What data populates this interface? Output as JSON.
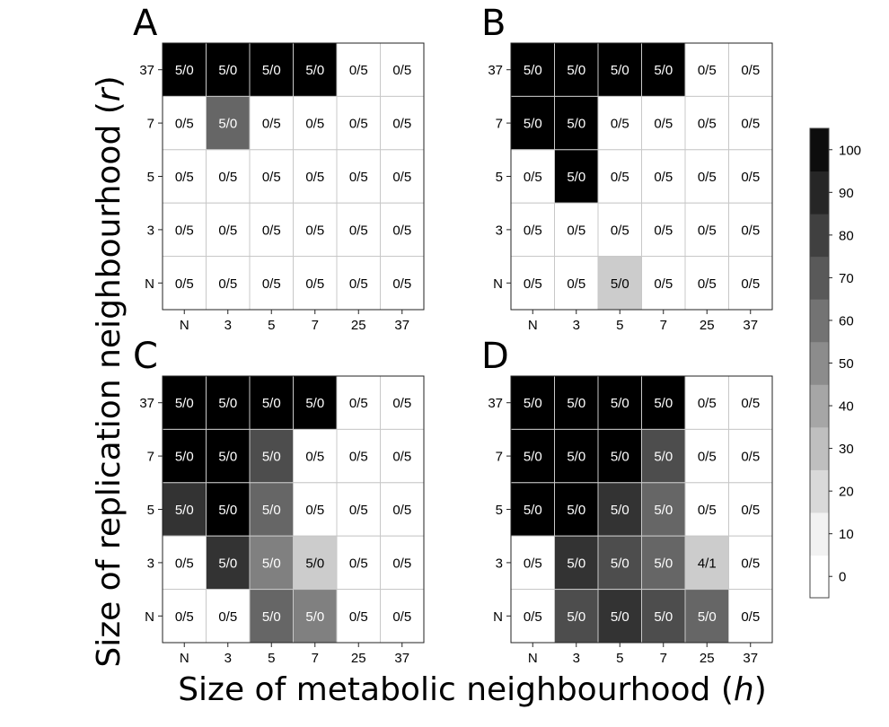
{
  "axis_titles": {
    "x_prefix": "Size of metabolic neighbourhood (",
    "x_var": "h",
    "suffix": ")",
    "y_prefix": "Size of replication neighbourhood (",
    "y_var": "r"
  },
  "chart_data": {
    "type": "heatmap",
    "x_categories": [
      "N",
      "3",
      "5",
      "7",
      "25",
      "37"
    ],
    "y_categories": [
      "37",
      "7",
      "5",
      "3",
      "N"
    ],
    "colorbar": {
      "ticks": [
        100,
        90,
        80,
        70,
        60,
        50,
        40,
        30,
        20,
        10,
        0
      ],
      "range": [
        -5,
        105
      ],
      "step": 10
    },
    "panels": [
      {
        "label": "A",
        "values": [
          [
            100,
            100,
            100,
            100,
            0,
            0
          ],
          [
            0,
            60,
            0,
            0,
            0,
            0
          ],
          [
            0,
            0,
            0,
            0,
            0,
            0
          ],
          [
            0,
            0,
            0,
            0,
            0,
            0
          ],
          [
            0,
            0,
            0,
            0,
            0,
            0
          ]
        ],
        "labels": [
          [
            "5/0",
            "5/0",
            "5/0",
            "5/0",
            "0/5",
            "0/5"
          ],
          [
            "0/5",
            "5/0",
            "0/5",
            "0/5",
            "0/5",
            "0/5"
          ],
          [
            "0/5",
            "0/5",
            "0/5",
            "0/5",
            "0/5",
            "0/5"
          ],
          [
            "0/5",
            "0/5",
            "0/5",
            "0/5",
            "0/5",
            "0/5"
          ],
          [
            "0/5",
            "0/5",
            "0/5",
            "0/5",
            "0/5",
            "0/5"
          ]
        ]
      },
      {
        "label": "B",
        "values": [
          [
            100,
            100,
            100,
            100,
            0,
            0
          ],
          [
            100,
            100,
            0,
            0,
            0,
            0
          ],
          [
            0,
            100,
            0,
            0,
            0,
            0
          ],
          [
            0,
            0,
            0,
            0,
            0,
            0
          ],
          [
            0,
            0,
            20,
            0,
            0,
            0
          ]
        ],
        "labels": [
          [
            "5/0",
            "5/0",
            "5/0",
            "5/0",
            "0/5",
            "0/5"
          ],
          [
            "5/0",
            "5/0",
            "0/5",
            "0/5",
            "0/5",
            "0/5"
          ],
          [
            "0/5",
            "5/0",
            "0/5",
            "0/5",
            "0/5",
            "0/5"
          ],
          [
            "0/5",
            "0/5",
            "0/5",
            "0/5",
            "0/5",
            "0/5"
          ],
          [
            "0/5",
            "0/5",
            "5/0",
            "0/5",
            "0/5",
            "0/5"
          ]
        ]
      },
      {
        "label": "C",
        "values": [
          [
            100,
            100,
            100,
            100,
            0,
            0
          ],
          [
            100,
            100,
            70,
            0,
            0,
            0
          ],
          [
            80,
            100,
            60,
            0,
            0,
            0
          ],
          [
            0,
            80,
            50,
            20,
            0,
            0
          ],
          [
            0,
            0,
            60,
            50,
            0,
            0
          ]
        ],
        "labels": [
          [
            "5/0",
            "5/0",
            "5/0",
            "5/0",
            "0/5",
            "0/5"
          ],
          [
            "5/0",
            "5/0",
            "5/0",
            "0/5",
            "0/5",
            "0/5"
          ],
          [
            "5/0",
            "5/0",
            "5/0",
            "0/5",
            "0/5",
            "0/5"
          ],
          [
            "0/5",
            "5/0",
            "5/0",
            "5/0",
            "0/5",
            "0/5"
          ],
          [
            "0/5",
            "0/5",
            "5/0",
            "5/0",
            "0/5",
            "0/5"
          ]
        ]
      },
      {
        "label": "D",
        "values": [
          [
            100,
            100,
            100,
            100,
            0,
            0
          ],
          [
            100,
            100,
            100,
            70,
            0,
            0
          ],
          [
            100,
            100,
            80,
            60,
            0,
            0
          ],
          [
            0,
            80,
            70,
            60,
            20,
            0
          ],
          [
            0,
            70,
            80,
            70,
            60,
            0
          ]
        ],
        "labels": [
          [
            "5/0",
            "5/0",
            "5/0",
            "5/0",
            "0/5",
            "0/5"
          ],
          [
            "5/0",
            "5/0",
            "5/0",
            "5/0",
            "0/5",
            "0/5"
          ],
          [
            "5/0",
            "5/0",
            "5/0",
            "5/0",
            "0/5",
            "0/5"
          ],
          [
            "0/5",
            "5/0",
            "5/0",
            "5/0",
            "4/1",
            "0/5"
          ],
          [
            "0/5",
            "5/0",
            "5/0",
            "5/0",
            "5/0",
            "0/5"
          ]
        ]
      }
    ]
  }
}
